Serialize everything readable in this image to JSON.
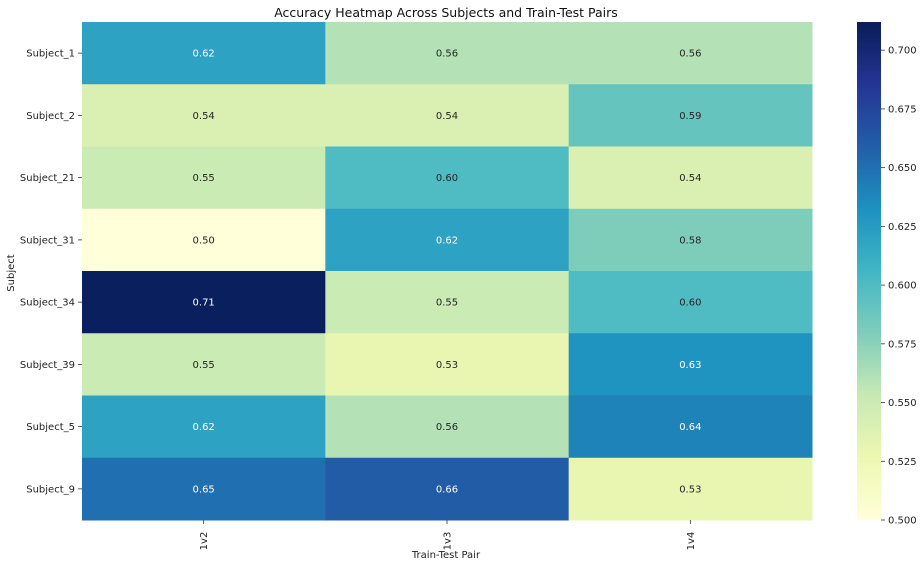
{
  "chart_data": {
    "type": "heatmap",
    "title": "Accuracy Heatmap Across Subjects and Train-Test Pairs",
    "xlabel": "Train-Test Pair",
    "ylabel": "Subject",
    "x_categories": [
      "1v2",
      "1v3",
      "1v4"
    ],
    "y_categories": [
      "Subject_1",
      "Subject_2",
      "Subject_21",
      "Subject_31",
      "Subject_34",
      "Subject_39",
      "Subject_5",
      "Subject_9"
    ],
    "values": [
      [
        0.62,
        0.56,
        0.56
      ],
      [
        0.54,
        0.54,
        0.59
      ],
      [
        0.55,
        0.6,
        0.54
      ],
      [
        0.5,
        0.62,
        0.58
      ],
      [
        0.71,
        0.55,
        0.6
      ],
      [
        0.55,
        0.53,
        0.63
      ],
      [
        0.62,
        0.56,
        0.64
      ],
      [
        0.65,
        0.66,
        0.53
      ]
    ],
    "cell_labels": [
      [
        "0.62",
        "0.56",
        "0.56"
      ],
      [
        "0.54",
        "0.54",
        "0.59"
      ],
      [
        "0.55",
        "0.60",
        "0.54"
      ],
      [
        "0.50",
        "0.62",
        "0.58"
      ],
      [
        "0.71",
        "0.55",
        "0.60"
      ],
      [
        "0.55",
        "0.53",
        "0.63"
      ],
      [
        "0.62",
        "0.56",
        "0.64"
      ],
      [
        "0.65",
        "0.66",
        "0.53"
      ]
    ],
    "colormap": "YlGnBu",
    "colorbar": {
      "min": 0.5,
      "max": 0.712,
      "ticks": [
        0.5,
        0.525,
        0.55,
        0.575,
        0.6,
        0.625,
        0.65,
        0.675,
        0.7
      ],
      "tick_labels": [
        "0.500",
        "0.525",
        "0.550",
        "0.575",
        "0.600",
        "0.625",
        "0.650",
        "0.675",
        "0.700"
      ]
    },
    "colormap_stops": [
      "#ffffd9",
      "#edf8b1",
      "#c7e9b4",
      "#7fcdbb",
      "#41b6c4",
      "#1d91c0",
      "#225ea8",
      "#253494",
      "#081d58"
    ],
    "grid": false,
    "legend": "colorbar-right"
  }
}
